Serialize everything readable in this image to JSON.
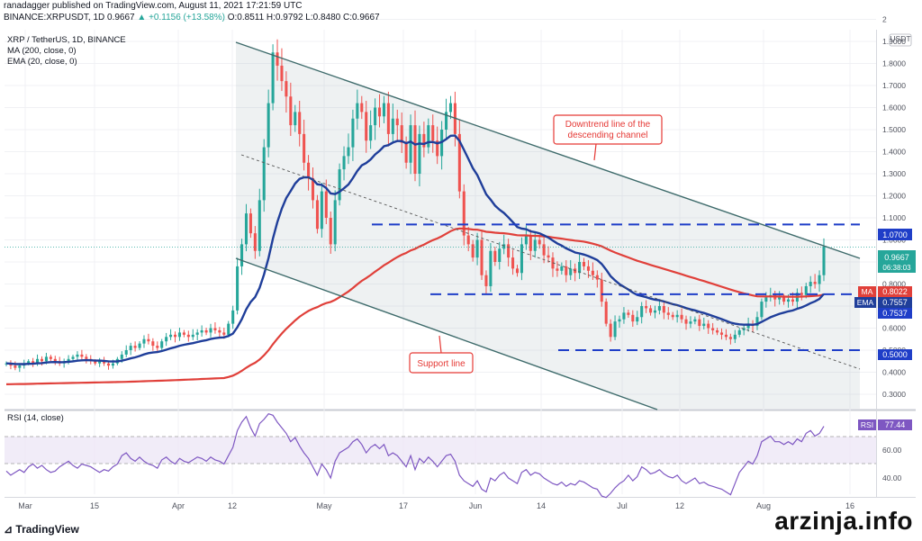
{
  "header": {
    "line1": "ranadagger published on TradingView.com, August 11, 2021 17:21:59 UTC",
    "symbol": "BINANCE:XRPUSDT, 1D 0.9667",
    "change": "▲ +0.1156 (+13.58%)",
    "ohlc": "O:0.8511 H:0.9792 L:0.8480 C:0.9667"
  },
  "legend": {
    "title": "XRP / TetherUS, 1D, BINANCE",
    "ma": "MA (200, close, 0)",
    "ema": "EMA (20, close, 0)",
    "rsi": "RSI (14, close)"
  },
  "annotations": {
    "downtrend": [
      "Downtrend line of the",
      "descending channel"
    ],
    "support": "Support line"
  },
  "price_axis": {
    "unit": "USDT",
    "ticks": [
      "2",
      "1.9000",
      "1.8000",
      "1.7000",
      "1.6000",
      "1.5000",
      "1.4000",
      "1.3000",
      "1.2000",
      "1.1000",
      "1.0000",
      "0.9000",
      "0.8000",
      "0.7000",
      "0.6000",
      "0.5000",
      "0.4000",
      "0.3000"
    ]
  },
  "badges": {
    "r1070": "1.0700",
    "price": "0.9667",
    "countdown": "06:38:03",
    "ma_tag": "MA",
    "ma_val": "0.8022",
    "ema_tag": "EMA",
    "ema_val": "0.7557",
    "s7537": "0.7537",
    "s5000": "0.5000",
    "rsi_tag": "RSI",
    "rsi_val": "77.44"
  },
  "rsi_axis": {
    "ticks": [
      "80.00",
      "60.00",
      "40.00"
    ]
  },
  "x_axis": {
    "labels": [
      "Mar",
      "15",
      "Apr",
      "12",
      "May",
      "17",
      "Jun",
      "14",
      "Jul",
      "12",
      "Aug",
      "16"
    ]
  },
  "footer": {
    "logo": "TradingView",
    "watermark": "arzinja.info"
  },
  "colors": {
    "up": "#26a69a",
    "down": "#ef5350",
    "ma": "#e0403a",
    "ema": "#1f3e9a",
    "rsi": "#7e57c2",
    "dashed": "#1f3ec8",
    "channel": "#3e6b6b"
  },
  "chart_data": {
    "type": "candlestick",
    "title": "XRP / TetherUS, 1D, BINANCE",
    "ylim": [
      0.25,
      2.0
    ],
    "rsi_ylim": [
      20,
      90
    ],
    "horizontal_levels": [
      1.07,
      0.7537,
      0.5
    ],
    "last_close": 0.9667,
    "closes": [
      0.44,
      0.43,
      0.42,
      0.43,
      0.44,
      0.45,
      0.44,
      0.46,
      0.45,
      0.47,
      0.46,
      0.45,
      0.44,
      0.45,
      0.46,
      0.47,
      0.48,
      0.47,
      0.46,
      0.45,
      0.44,
      0.45,
      0.44,
      0.43,
      0.44,
      0.46,
      0.48,
      0.5,
      0.52,
      0.51,
      0.53,
      0.55,
      0.54,
      0.52,
      0.51,
      0.54,
      0.56,
      0.57,
      0.56,
      0.58,
      0.57,
      0.56,
      0.57,
      0.58,
      0.59,
      0.58,
      0.6,
      0.59,
      0.58,
      0.57,
      0.62,
      0.68,
      0.88,
      0.98,
      1.12,
      1.03,
      0.95,
      1.18,
      1.42,
      1.62,
      1.85,
      1.79,
      1.72,
      1.65,
      1.52,
      1.58,
      1.48,
      1.35,
      1.28,
      1.18,
      1.05,
      1.22,
      1.1,
      0.98,
      1.18,
      1.32,
      1.38,
      1.42,
      1.55,
      1.62,
      1.58,
      1.45,
      1.52,
      1.6,
      1.56,
      1.62,
      1.48,
      1.55,
      1.52,
      1.44,
      1.35,
      1.52,
      1.3,
      1.48,
      1.42,
      1.52,
      1.45,
      1.38,
      1.5,
      1.58,
      1.62,
      1.48,
      1.22,
      1.02,
      0.98,
      0.92,
      1.0,
      0.84,
      0.79,
      0.95,
      0.9,
      0.96,
      0.98,
      0.92,
      0.87,
      0.85,
      0.98,
      1.02,
      0.95,
      1.0,
      0.98,
      0.93,
      0.92,
      0.87,
      0.86,
      0.88,
      0.84,
      0.87,
      0.85,
      0.9,
      0.88,
      0.86,
      0.84,
      0.82,
      0.72,
      0.62,
      0.56,
      0.63,
      0.64,
      0.67,
      0.66,
      0.63,
      0.65,
      0.7,
      0.69,
      0.67,
      0.68,
      0.7,
      0.67,
      0.66,
      0.65,
      0.66,
      0.64,
      0.62,
      0.63,
      0.64,
      0.61,
      0.62,
      0.6,
      0.59,
      0.58,
      0.57,
      0.56,
      0.55,
      0.57,
      0.59,
      0.6,
      0.62,
      0.61,
      0.65,
      0.72,
      0.74,
      0.75,
      0.73,
      0.74,
      0.72,
      0.73,
      0.72,
      0.76,
      0.75,
      0.79,
      0.81,
      0.8,
      0.84,
      0.97
    ],
    "rsi_values": [
      45,
      42,
      44,
      46,
      44,
      48,
      50,
      47,
      49,
      46,
      44,
      45,
      48,
      50,
      52,
      49,
      47,
      50,
      49,
      48,
      46,
      44,
      46,
      45,
      48,
      50,
      56,
      58,
      54,
      52,
      55,
      52,
      50,
      49,
      47,
      53,
      55,
      52,
      50,
      54,
      52,
      51,
      53,
      55,
      54,
      52,
      55,
      53,
      52,
      50,
      56,
      62,
      74,
      80,
      84,
      76,
      70,
      79,
      82,
      86,
      85,
      80,
      76,
      72,
      66,
      69,
      63,
      58,
      54,
      48,
      42,
      50,
      46,
      40,
      52,
      58,
      60,
      62,
      66,
      68,
      64,
      58,
      62,
      64,
      61,
      64,
      56,
      58,
      56,
      52,
      48,
      56,
      46,
      54,
      51,
      55,
      52,
      48,
      52,
      56,
      57,
      52,
      42,
      38,
      36,
      34,
      38,
      32,
      30,
      40,
      38,
      42,
      44,
      40,
      38,
      36,
      44,
      46,
      42,
      44,
      43,
      40,
      38,
      36,
      35,
      37,
      34,
      36,
      35,
      38,
      37,
      35,
      33,
      32,
      27,
      26,
      29,
      33,
      36,
      38,
      42,
      38,
      41,
      48,
      46,
      43,
      44,
      46,
      43,
      41,
      40,
      42,
      38,
      36,
      38,
      40,
      36,
      37,
      35,
      34,
      33,
      32,
      30,
      28,
      36,
      44,
      48,
      52,
      50,
      56,
      66,
      68,
      70,
      66,
      66,
      64,
      66,
      64,
      68,
      66,
      72,
      74,
      70,
      72,
      77
    ]
  }
}
